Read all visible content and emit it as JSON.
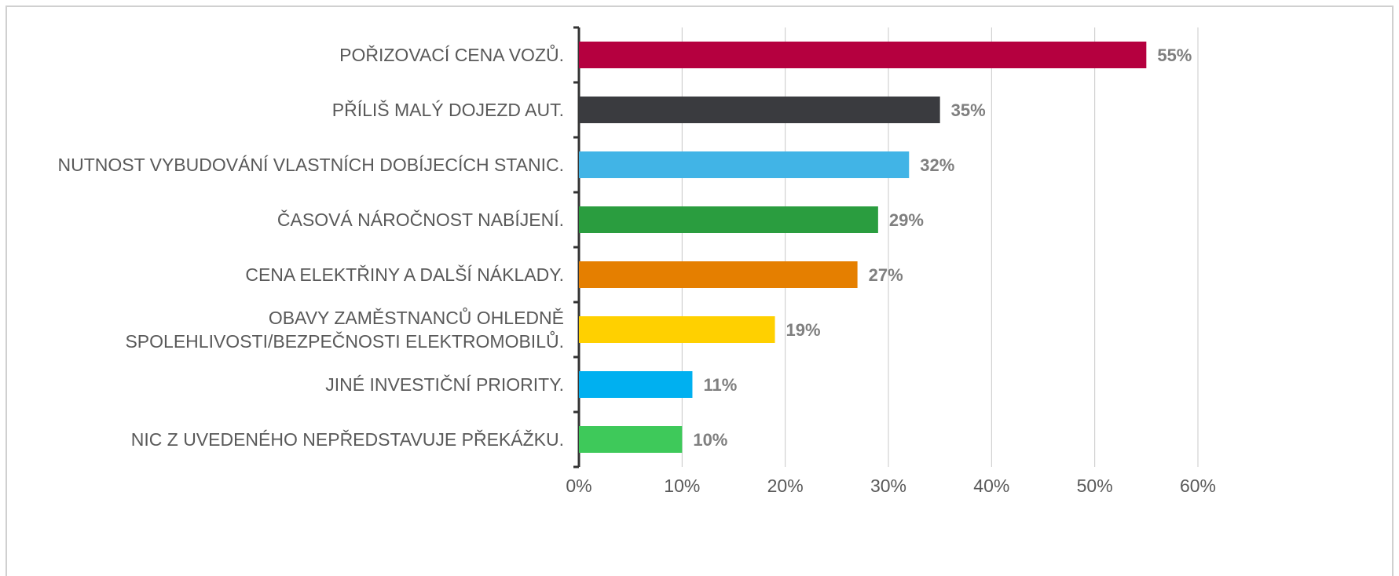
{
  "chart_data": {
    "type": "barh",
    "categories": [
      "POŘIZOVACÍ CENA VOZŮ.",
      "PŘÍLIŠ MALÝ DOJEZD AUT.",
      "NUTNOST VYBUDOVÁNÍ VLASTNÍCH DOBÍJECÍCH STANIC.",
      "ČASOVÁ NÁROČNOST NABÍJENÍ.",
      "CENA ELEKTŘINY A DALŠÍ NÁKLADY.",
      "OBAVY ZAMĚSTNANCŮ OHLEDNĚ\nSPOLEHLIVOSTI/BEZPEČNOSTI ELEKTROMOBILŮ.",
      "JINÉ INVESTIČNÍ PRIORITY.",
      "NIC Z UVEDENÉHO NEPŘEDSTAVUJE PŘEKÁŽKU."
    ],
    "values": [
      55,
      35,
      32,
      29,
      27,
      19,
      11,
      10
    ],
    "value_labels": [
      "55%",
      "35%",
      "32%",
      "29%",
      "27%",
      "19%",
      "11%",
      "10%"
    ],
    "colors": [
      "#b5003f",
      "#3a3b3f",
      "#41b4e6",
      "#2a9d3f",
      "#e57f00",
      "#ffd000",
      "#00b0f0",
      "#3ec95a"
    ],
    "xlim": [
      0,
      60
    ],
    "xticks": [
      {
        "value": 0,
        "label": "0%"
      },
      {
        "value": 10,
        "label": "10%"
      },
      {
        "value": 20,
        "label": "20%"
      },
      {
        "value": 30,
        "label": "30%"
      },
      {
        "value": 40,
        "label": "40%"
      },
      {
        "value": 50,
        "label": "50%"
      },
      {
        "value": 60,
        "label": "60%"
      }
    ],
    "grid": true
  }
}
